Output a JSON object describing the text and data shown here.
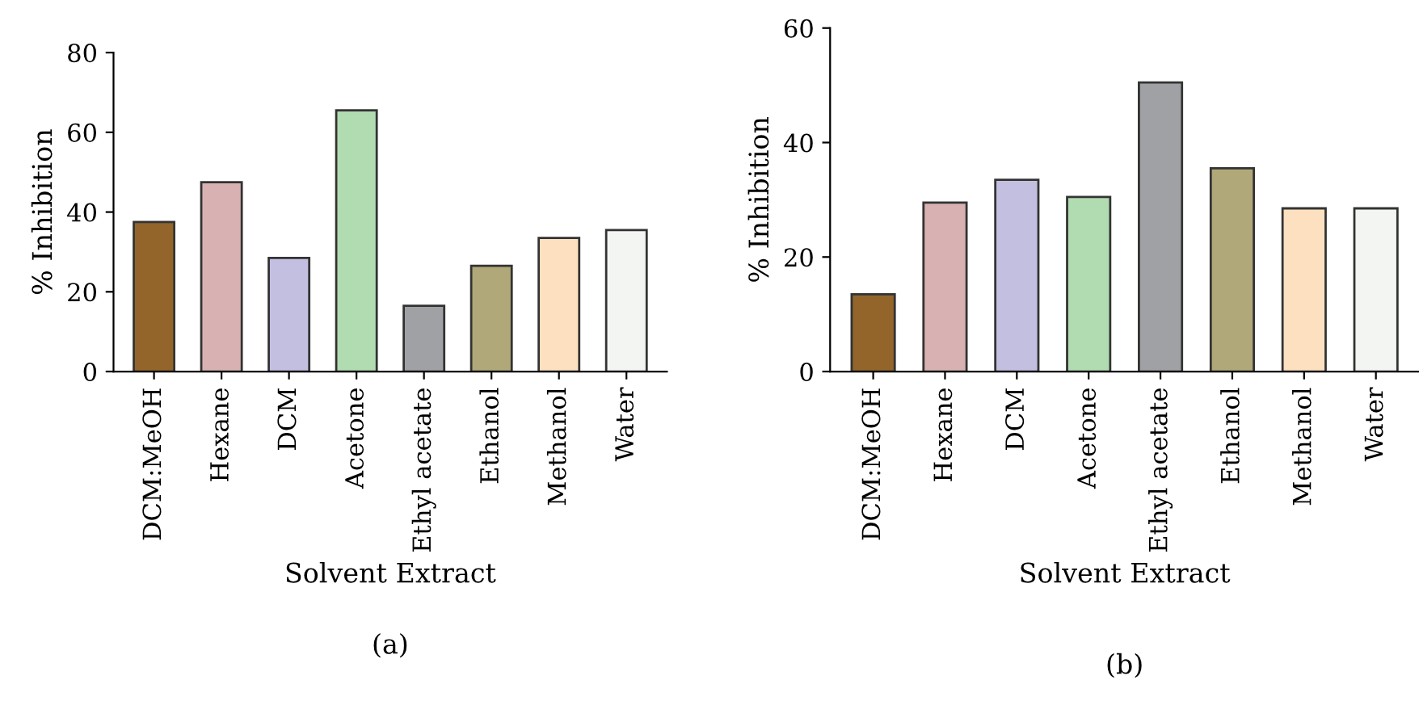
{
  "chart_data": [
    {
      "type": "bar",
      "xlabel": "Solvent Extract",
      "ylabel": "% Inhibition",
      "annotations": [
        "(a)"
      ],
      "categories": [
        "DCM:MeOH",
        "Hexane",
        "DCM",
        "Acetone",
        "Ethyl acetate",
        "Ethanol",
        "Methanol",
        "Water"
      ],
      "values": [
        37.5,
        47.5,
        28.5,
        65.5,
        16.5,
        26.5,
        33.5,
        35.5
      ],
      "colors": [
        "#93652a",
        "#d8b2b2",
        "#c3bfe0",
        "#b1dbb0",
        "#a0a1a4",
        "#b0a878",
        "#fde0c0",
        "#f3f5f3"
      ],
      "ylim": [
        0,
        80
      ],
      "yticks": [
        0,
        20,
        40,
        60,
        80
      ],
      "grid": false
    },
    {
      "type": "bar",
      "xlabel": "Solvent Extract",
      "ylabel": "% Inhibition",
      "annotations": [
        "(b)"
      ],
      "categories": [
        "DCM:MeOH",
        "Hexane",
        "DCM",
        "Acetone",
        "Ethyl acetate",
        "Ethanol",
        "Methanol",
        "Water"
      ],
      "values": [
        13.5,
        29.5,
        33.5,
        30.5,
        50.5,
        35.5,
        28.5,
        28.5
      ],
      "colors": [
        "#93652a",
        "#d8b2b2",
        "#c3bfe0",
        "#b1dbb0",
        "#a0a1a4",
        "#b0a878",
        "#fde0c0",
        "#f3f5f3"
      ],
      "ylim": [
        0,
        60
      ],
      "yticks": [
        0,
        20,
        40,
        60
      ],
      "grid": false
    }
  ]
}
